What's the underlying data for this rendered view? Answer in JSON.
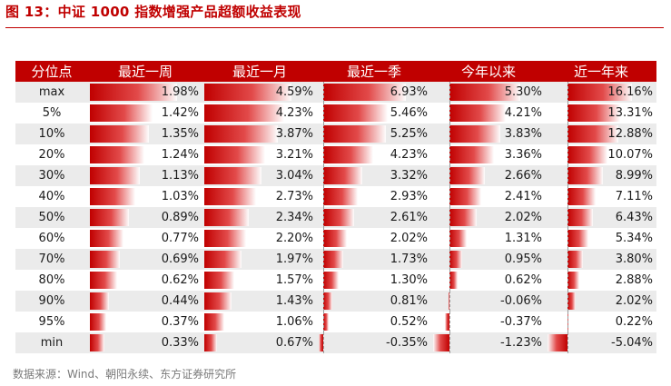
{
  "title": "图 13：中证 1000 指数增强产品超额收益表现",
  "source": "数据来源：Wind、朝阳永续、东方证券研究所",
  "colors": {
    "accent": "#c00000",
    "stripe": "#ebebeb"
  },
  "table": {
    "headers": [
      "分位点",
      "最近一周",
      "最近一月",
      "最近一季",
      "今年以来",
      "近一年来"
    ],
    "rows": [
      {
        "pct": "max",
        "values": [
          "1.98%",
          "4.59%",
          "6.93%",
          "5.30%",
          "16.16%"
        ]
      },
      {
        "pct": "5%",
        "values": [
          "1.42%",
          "4.23%",
          "5.46%",
          "4.21%",
          "13.31%"
        ]
      },
      {
        "pct": "10%",
        "values": [
          "1.35%",
          "3.87%",
          "5.25%",
          "3.83%",
          "12.88%"
        ]
      },
      {
        "pct": "20%",
        "values": [
          "1.24%",
          "3.21%",
          "4.23%",
          "3.36%",
          "10.07%"
        ]
      },
      {
        "pct": "30%",
        "values": [
          "1.13%",
          "3.04%",
          "3.32%",
          "2.66%",
          "8.99%"
        ]
      },
      {
        "pct": "40%",
        "values": [
          "1.03%",
          "2.73%",
          "2.93%",
          "2.41%",
          "7.11%"
        ]
      },
      {
        "pct": "50%",
        "values": [
          "0.89%",
          "2.34%",
          "2.61%",
          "2.02%",
          "6.43%"
        ]
      },
      {
        "pct": "60%",
        "values": [
          "0.77%",
          "2.20%",
          "2.02%",
          "1.31%",
          "5.34%"
        ]
      },
      {
        "pct": "70%",
        "values": [
          "0.69%",
          "1.97%",
          "1.73%",
          "0.95%",
          "3.80%"
        ]
      },
      {
        "pct": "80%",
        "values": [
          "0.62%",
          "1.57%",
          "1.30%",
          "0.62%",
          "2.88%"
        ]
      },
      {
        "pct": "90%",
        "values": [
          "0.44%",
          "1.43%",
          "0.81%",
          "-0.06%",
          "2.02%"
        ]
      },
      {
        "pct": "95%",
        "values": [
          "0.37%",
          "1.06%",
          "0.52%",
          "-0.37%",
          "0.22%"
        ]
      },
      {
        "pct": "min",
        "values": [
          "0.33%",
          "0.67%",
          "-0.35%",
          "-1.23%",
          "-5.04%"
        ]
      }
    ]
  }
}
